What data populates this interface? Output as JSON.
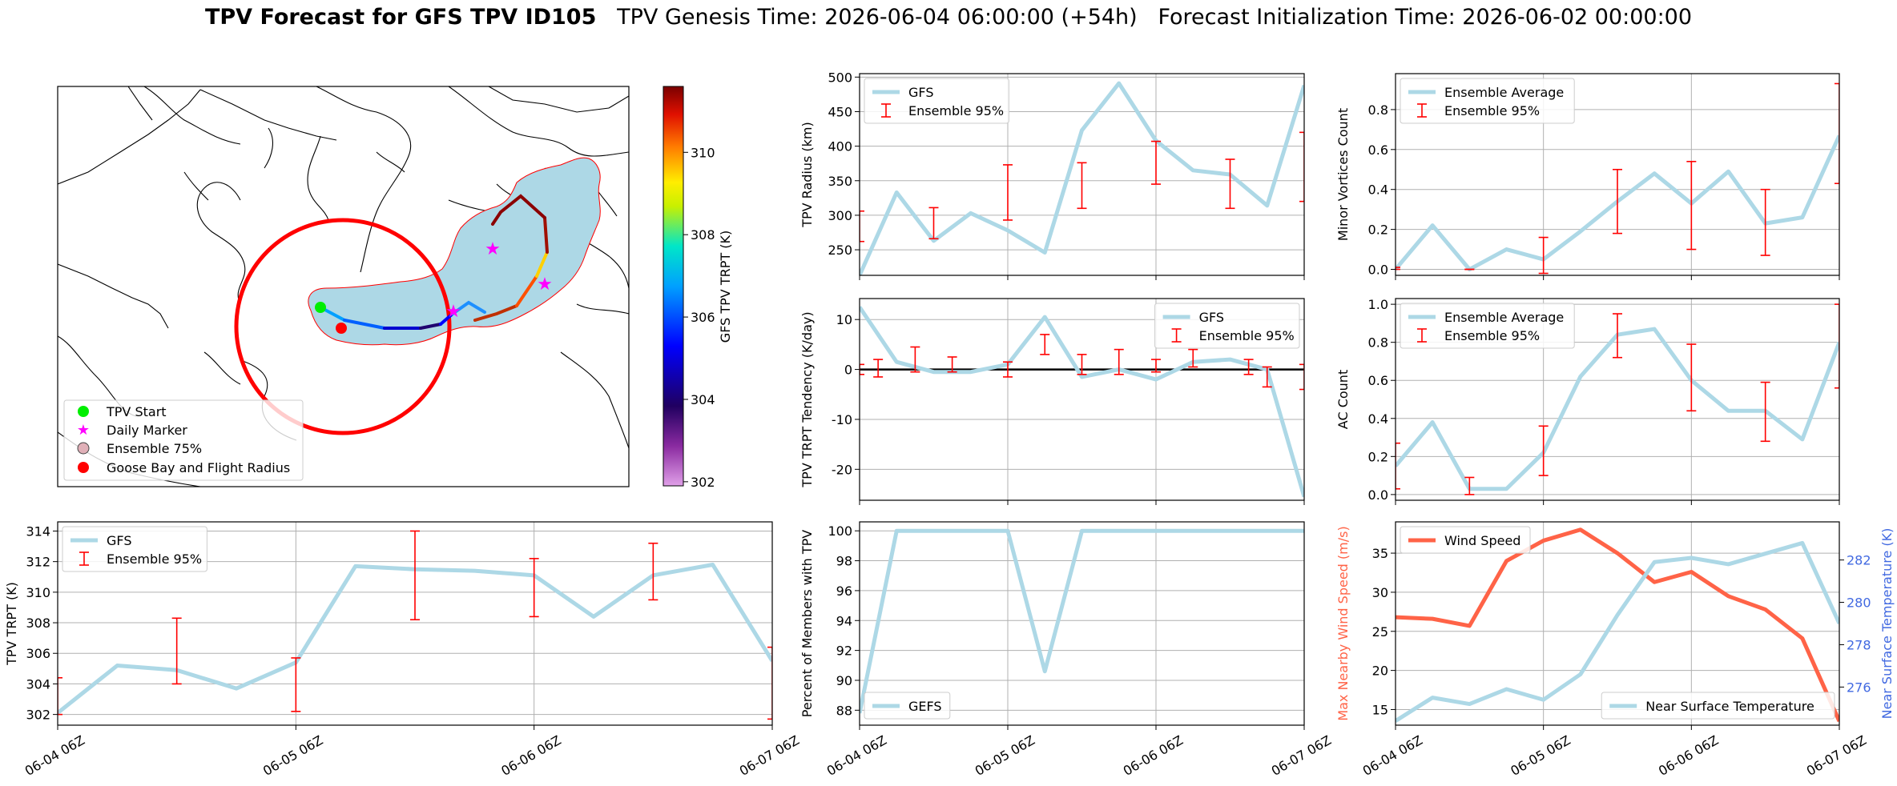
{
  "title": {
    "bold": "TPV Forecast for GFS TPV ID105",
    "rest": "   TPV Genesis Time: 2026-06-04 06:00:00 (+54h)   Forecast Initialization Time: 2026-06-02 00:00:00"
  },
  "colors": {
    "gfs_line": "#add8e6",
    "error_bar": "#ff0000",
    "wind": "#ff6347",
    "temp_axis": "#4169e1",
    "ensemble_fill": "#add8e6",
    "flight_radius": "#ff0000"
  },
  "map": {
    "type": "map",
    "legend": [
      "TPV Start",
      "Daily Marker",
      "Ensemble 75%",
      "Goose Bay and Flight Radius"
    ],
    "colorbar_label": "GFS TPV TRPT (K)",
    "colorbar_ticks": [
      302,
      304,
      306,
      308,
      310
    ],
    "colorbar_range": [
      301.9,
      311.6
    ],
    "colorbar_colormap": "purple-blue-cyan-yellow-orange-darkred"
  },
  "chart_data": [
    {
      "id": "radius",
      "type": "line",
      "ylabel": "TPV Radius (km)",
      "xlabel": "",
      "ylim": [
        213,
        505
      ],
      "yticks": [
        250,
        300,
        350,
        400,
        450,
        500
      ],
      "xlim": [
        0,
        72
      ],
      "legend": [
        "GFS",
        "Ensemble 95%"
      ],
      "legend_position": "top-left",
      "series": [
        {
          "name": "GFS",
          "x": [
            0,
            6,
            12,
            18,
            24,
            30,
            36,
            42,
            48,
            54,
            60,
            66,
            72
          ],
          "values": [
            213,
            333,
            263,
            303,
            278,
            246,
            423,
            491,
            408,
            365,
            359,
            314,
            488
          ]
        }
      ],
      "errorbars": [
        {
          "x": 0,
          "low": 262,
          "high": 306
        },
        {
          "x": 12,
          "low": 266,
          "high": 311
        },
        {
          "x": 24,
          "low": 293,
          "high": 373
        },
        {
          "x": 36,
          "low": 310,
          "high": 376
        },
        {
          "x": 48,
          "low": 345,
          "high": 407
        },
        {
          "x": 60,
          "low": 310,
          "high": 381
        },
        {
          "x": 72,
          "low": 320,
          "high": 420
        }
      ]
    },
    {
      "id": "minor",
      "type": "line",
      "ylabel": "Minor Vortices Count",
      "xlabel": "",
      "ylim": [
        -0.03,
        0.98
      ],
      "yticks": [
        0.0,
        0.2,
        0.4,
        0.6,
        0.8
      ],
      "xlim": [
        0,
        72
      ],
      "legend": [
        "Ensemble Average",
        "Ensemble 95%"
      ],
      "legend_position": "top-left",
      "series": [
        {
          "name": "Ensemble Average",
          "x": [
            0,
            6,
            12,
            18,
            24,
            30,
            36,
            42,
            48,
            54,
            60,
            66,
            72
          ],
          "values": [
            0.0,
            0.22,
            0.0,
            0.1,
            0.05,
            0.19,
            0.34,
            0.48,
            0.33,
            0.49,
            0.23,
            0.26,
            0.67
          ]
        }
      ],
      "errorbars": [
        {
          "x": 0,
          "low": 0.0,
          "high": 0.01
        },
        {
          "x": 12,
          "low": 0.0,
          "high": 0.0
        },
        {
          "x": 24,
          "low": -0.02,
          "high": 0.16
        },
        {
          "x": 36,
          "low": 0.18,
          "high": 0.5
        },
        {
          "x": 48,
          "low": 0.1,
          "high": 0.54
        },
        {
          "x": 60,
          "low": 0.07,
          "high": 0.4
        },
        {
          "x": 72,
          "low": 0.43,
          "high": 0.93
        }
      ]
    },
    {
      "id": "tendency",
      "type": "line",
      "ylabel": "TPV TRPT Tendency (K/day)",
      "xlabel": "",
      "ylim": [
        -26.2,
        14.2
      ],
      "yticks": [
        -20,
        -10,
        0,
        10
      ],
      "xlim": [
        0,
        72
      ],
      "zero_line": 0,
      "legend": [
        "GFS",
        "Ensemble 95%"
      ],
      "legend_position": "top-right",
      "series": [
        {
          "name": "GFS",
          "x": [
            0,
            6,
            12,
            18,
            24,
            30,
            36,
            42,
            48,
            54,
            60,
            66,
            72
          ],
          "values": [
            12.5,
            1.5,
            -0.5,
            -0.5,
            1.0,
            10.5,
            -1.5,
            0.0,
            -2.0,
            1.5,
            2.0,
            0.0,
            -25.5
          ]
        }
      ],
      "errorbars": [
        {
          "x": 0,
          "low": -1,
          "high": 1
        },
        {
          "x": 3,
          "low": -1.5,
          "high": 2
        },
        {
          "x": 9,
          "low": -0.5,
          "high": 4.5
        },
        {
          "x": 15,
          "low": -0.5,
          "high": 2.5
        },
        {
          "x": 24,
          "low": -1.5,
          "high": 1.5
        },
        {
          "x": 30,
          "low": 3,
          "high": 7
        },
        {
          "x": 36,
          "low": -1,
          "high": 3
        },
        {
          "x": 42,
          "low": -1,
          "high": 4
        },
        {
          "x": 48,
          "low": -0.5,
          "high": 2
        },
        {
          "x": 54,
          "low": 0.5,
          "high": 4
        },
        {
          "x": 63,
          "low": -1,
          "high": 2
        },
        {
          "x": 66,
          "low": -3.5,
          "high": 0.5
        },
        {
          "x": 72,
          "low": -4,
          "high": 1
        }
      ]
    },
    {
      "id": "ac",
      "type": "line",
      "ylabel": "AC Count",
      "xlabel": "",
      "ylim": [
        -0.03,
        1.03
      ],
      "yticks": [
        0.0,
        0.2,
        0.4,
        0.6,
        0.8,
        1.0
      ],
      "xlim": [
        0,
        72
      ],
      "legend": [
        "Ensemble Average",
        "Ensemble 95%"
      ],
      "legend_position": "top-left",
      "series": [
        {
          "name": "Ensemble Average",
          "x": [
            0,
            6,
            12,
            18,
            24,
            30,
            36,
            42,
            48,
            54,
            60,
            66,
            72
          ],
          "values": [
            0.15,
            0.38,
            0.03,
            0.03,
            0.22,
            0.62,
            0.84,
            0.87,
            0.6,
            0.44,
            0.44,
            0.29,
            0.8
          ]
        }
      ],
      "errorbars": [
        {
          "x": 0,
          "low": 0.03,
          "high": 0.27
        },
        {
          "x": 12,
          "low": 0.0,
          "high": 0.09
        },
        {
          "x": 24,
          "low": 0.1,
          "high": 0.36
        },
        {
          "x": 36,
          "low": 0.72,
          "high": 0.95
        },
        {
          "x": 48,
          "low": 0.44,
          "high": 0.79
        },
        {
          "x": 60,
          "low": 0.28,
          "high": 0.59
        },
        {
          "x": 72,
          "low": 0.56,
          "high": 1.0
        }
      ]
    },
    {
      "id": "trpt",
      "type": "line",
      "ylabel": "TPV TRPT (K)",
      "xlabel": "",
      "ylim": [
        301.3,
        314.6
      ],
      "yticks": [
        302,
        304,
        306,
        308,
        310,
        312,
        314
      ],
      "xlim": [
        0,
        72
      ],
      "xticks": [
        0,
        24,
        48,
        72
      ],
      "xticklabels": [
        "06-04 06Z",
        "06-05 06Z",
        "06-06 06Z",
        "06-07 06Z"
      ],
      "legend": [
        "GFS",
        "Ensemble 95%"
      ],
      "legend_position": "top-left",
      "series": [
        {
          "name": "GFS",
          "x": [
            0,
            6,
            12,
            18,
            24,
            30,
            36,
            42,
            48,
            54,
            60,
            66,
            72
          ],
          "values": [
            302.1,
            305.2,
            304.9,
            303.7,
            305.4,
            311.7,
            311.5,
            311.4,
            311.1,
            308.4,
            311.1,
            311.8,
            305.5
          ]
        }
      ],
      "errorbars": [
        {
          "x": 0,
          "low": 302.0,
          "high": 304.4
        },
        {
          "x": 12,
          "low": 304.0,
          "high": 308.3
        },
        {
          "x": 24,
          "low": 302.2,
          "high": 305.7
        },
        {
          "x": 36,
          "low": 308.2,
          "high": 314.0
        },
        {
          "x": 48,
          "low": 308.4,
          "high": 312.2
        },
        {
          "x": 60,
          "low": 309.5,
          "high": 313.2
        },
        {
          "x": 72,
          "low": 301.7,
          "high": 306.4
        }
      ]
    },
    {
      "id": "percent",
      "type": "line",
      "ylabel": "Percent of Members with TPV",
      "xlabel": "",
      "ylim": [
        87.0,
        100.6
      ],
      "yticks": [
        88,
        90,
        92,
        94,
        96,
        98,
        100
      ],
      "xlim": [
        0,
        72
      ],
      "xticks": [
        0,
        24,
        48,
        72
      ],
      "xticklabels": [
        "06-04 06Z",
        "06-05 06Z",
        "06-06 06Z",
        "06-07 06Z"
      ],
      "legend": [
        "GEFS"
      ],
      "legend_position": "bottom-left",
      "series": [
        {
          "name": "GEFS",
          "x": [
            0,
            6,
            12,
            18,
            24,
            30,
            36,
            42,
            48,
            54,
            60,
            66,
            72
          ],
          "values": [
            87.8,
            100,
            100,
            100,
            100,
            90.6,
            100,
            100,
            100,
            100,
            100,
            100,
            100
          ]
        }
      ]
    },
    {
      "id": "wind_temp",
      "type": "line",
      "ylabel": "Max Nearby Wind Speed (m/s)",
      "y2label": "Near Surface Temperature (K)",
      "xlabel": "",
      "ylim": [
        13.0,
        39.0
      ],
      "yticks": [
        15,
        20,
        25,
        30,
        35
      ],
      "y2lim": [
        274.2,
        283.8
      ],
      "y2ticks": [
        276,
        278,
        280,
        282
      ],
      "xlim": [
        0,
        72
      ],
      "xticks": [
        0,
        24,
        48,
        72
      ],
      "xticklabels": [
        "06-04 06Z",
        "06-05 06Z",
        "06-06 06Z",
        "06-07 06Z"
      ],
      "legend": [
        "Wind Speed",
        "Near Surface Temperature"
      ],
      "legend_position": "top-left / bottom-right",
      "series": [
        {
          "name": "Wind Speed",
          "axis": "left",
          "x": [
            0,
            6,
            12,
            18,
            24,
            30,
            36,
            42,
            48,
            54,
            60,
            66,
            72
          ],
          "values": [
            26.8,
            26.6,
            25.7,
            34.0,
            36.6,
            38.0,
            35.0,
            31.3,
            32.6,
            29.5,
            27.8,
            24.1,
            13.5
          ]
        },
        {
          "name": "Near Surface Temperature",
          "axis": "right",
          "x": [
            0,
            6,
            12,
            18,
            24,
            30,
            36,
            42,
            48,
            54,
            60,
            66,
            72
          ],
          "values": [
            274.4,
            275.5,
            275.2,
            275.9,
            275.4,
            276.6,
            279.4,
            281.9,
            282.1,
            281.8,
            282.3,
            282.8,
            279.0
          ]
        }
      ]
    }
  ]
}
